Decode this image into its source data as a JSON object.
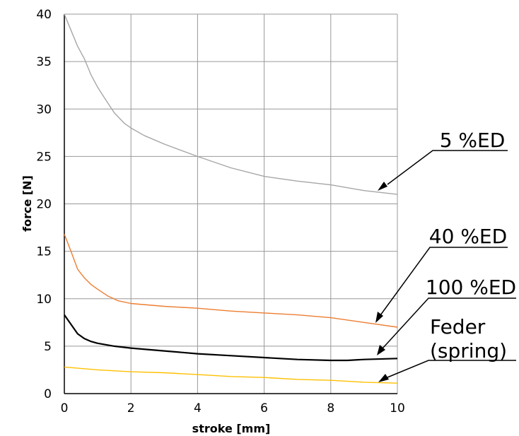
{
  "chart_data": {
    "type": "line",
    "title": "",
    "xlabel": "stroke [mm]",
    "ylabel": "force [N]",
    "xlim": [
      0,
      10
    ],
    "ylim": [
      0,
      40
    ],
    "xticks": [
      0,
      2,
      4,
      6,
      8,
      10
    ],
    "yticks": [
      0,
      5,
      10,
      15,
      20,
      25,
      30,
      35,
      40
    ],
    "grid": true,
    "legend": "none",
    "series": [
      {
        "name": "5 %ED",
        "color": "#a6a6a6",
        "points": [
          [
            0,
            40
          ],
          [
            0.2,
            38.3
          ],
          [
            0.4,
            36.6
          ],
          [
            0.6,
            35.3
          ],
          [
            0.8,
            33.6
          ],
          [
            1.0,
            32.3
          ],
          [
            1.2,
            31.2
          ],
          [
            1.5,
            29.6
          ],
          [
            1.8,
            28.5
          ],
          [
            2.0,
            28.0
          ],
          [
            2.4,
            27.2
          ],
          [
            3.0,
            26.3
          ],
          [
            4.0,
            25.0
          ],
          [
            5.0,
            23.8
          ],
          [
            6.0,
            22.9
          ],
          [
            7.0,
            22.4
          ],
          [
            8.0,
            22.0
          ],
          [
            9.0,
            21.4
          ],
          [
            10.0,
            21.0
          ]
        ]
      },
      {
        "name": "40 %ED",
        "color": "#ed7d31",
        "points": [
          [
            0,
            16.8
          ],
          [
            0.2,
            15.0
          ],
          [
            0.4,
            13.1
          ],
          [
            0.6,
            12.2
          ],
          [
            0.8,
            11.5
          ],
          [
            1.0,
            11.0
          ],
          [
            1.3,
            10.3
          ],
          [
            1.6,
            9.8
          ],
          [
            2.0,
            9.5
          ],
          [
            3.0,
            9.2
          ],
          [
            4.0,
            9.0
          ],
          [
            5.0,
            8.7
          ],
          [
            6.0,
            8.5
          ],
          [
            7.0,
            8.3
          ],
          [
            8.0,
            8.0
          ],
          [
            9.0,
            7.5
          ],
          [
            10.0,
            7.0
          ]
        ]
      },
      {
        "name": "100 %ED",
        "color": "#000000",
        "points": [
          [
            0,
            8.3
          ],
          [
            0.2,
            7.3
          ],
          [
            0.4,
            6.3
          ],
          [
            0.6,
            5.8
          ],
          [
            0.8,
            5.5
          ],
          [
            1.0,
            5.3
          ],
          [
            1.5,
            5.0
          ],
          [
            2.0,
            4.8
          ],
          [
            3.0,
            4.5
          ],
          [
            4.0,
            4.2
          ],
          [
            5.0,
            4.0
          ],
          [
            6.0,
            3.8
          ],
          [
            7.0,
            3.6
          ],
          [
            8.0,
            3.5
          ],
          [
            8.5,
            3.5
          ],
          [
            9.0,
            3.6
          ],
          [
            10.0,
            3.7
          ]
        ]
      },
      {
        "name": "Feder (spring)",
        "color": "#ffc000",
        "points": [
          [
            0,
            2.8
          ],
          [
            1.0,
            2.5
          ],
          [
            2.0,
            2.3
          ],
          [
            3.0,
            2.2
          ],
          [
            4.0,
            2.0
          ],
          [
            5.0,
            1.8
          ],
          [
            6.0,
            1.7
          ],
          [
            7.0,
            1.5
          ],
          [
            8.0,
            1.4
          ],
          [
            9.0,
            1.2
          ],
          [
            10.0,
            1.1
          ]
        ]
      }
    ],
    "annotations": [
      {
        "text": "5 %ED",
        "target": [
          9.3,
          21.3
        ]
      },
      {
        "text": "40 %ED",
        "target": [
          9.4,
          7.4
        ]
      },
      {
        "text": "100 %ED",
        "target": [
          9.4,
          3.6
        ]
      },
      {
        "text": "Feder",
        "target": [
          9.5,
          1.2
        ]
      },
      {
        "text": "(spring)",
        "target": [
          9.5,
          1.2
        ]
      }
    ]
  }
}
